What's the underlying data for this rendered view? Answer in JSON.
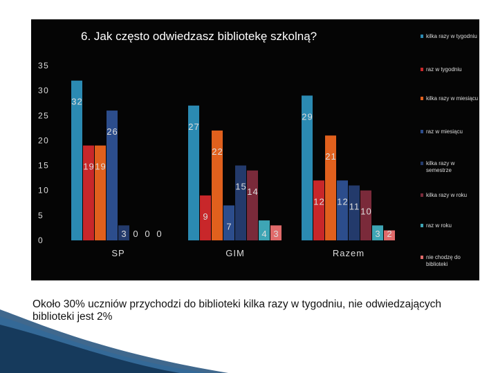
{
  "caption": "Około 30% uczniów przychodzi do biblioteki kilka razy w tygodniu, nie odwiedzających biblioteki jest 2%",
  "colors": {
    "panel_bg": "#050505",
    "axis_text": "#dddddd",
    "slide_accent": "#1f4e79"
  },
  "chart_data": {
    "type": "bar",
    "title": "6.  Jak często odwiedzasz bibliotekę szkolną?",
    "xlabel": "",
    "ylabel": "",
    "ylim": [
      0,
      35
    ],
    "yticks": [
      0,
      5,
      10,
      15,
      20,
      25,
      30,
      35
    ],
    "grid": false,
    "legend_position": "right",
    "categories": [
      "SP",
      "GIM",
      "Razem"
    ],
    "series": [
      {
        "name": "kilka razy w tygodniu",
        "color": "#2b8ab2",
        "values": [
          32,
          27,
          29
        ]
      },
      {
        "name": "raz w tygodniu",
        "color": "#c8272a",
        "values": [
          19,
          9,
          12
        ]
      },
      {
        "name": "kilka razy w miesiącu",
        "color": "#e0601d",
        "values": [
          19,
          22,
          21
        ]
      },
      {
        "name": "raz w miesiącu",
        "color": "#2c4d8c",
        "values": [
          26,
          7,
          12
        ]
      },
      {
        "name": "kilka razy w semestrze",
        "color": "#233a6b",
        "values": [
          3,
          15,
          11
        ]
      },
      {
        "name": "kilka razy w roku",
        "color": "#7a2a3a",
        "values": [
          0,
          14,
          10
        ]
      },
      {
        "name": "raz w roku",
        "color": "#3ea5b5",
        "values": [
          0,
          4,
          3
        ]
      },
      {
        "name": "nie chodzę do biblioteki",
        "color": "#e06a6a",
        "values": [
          0,
          3,
          2
        ]
      }
    ]
  }
}
